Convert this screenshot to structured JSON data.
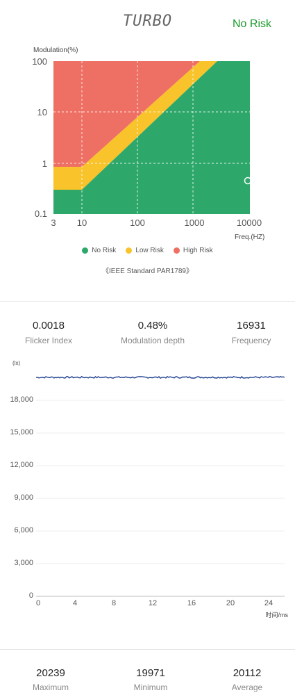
{
  "header": {
    "title": "TURBO",
    "status": "No Risk",
    "status_color": "#1a9a2a"
  },
  "chart_data": [
    {
      "type": "area",
      "title": "",
      "ylabel": "Modulation(%)",
      "xlabel": "Freq.(HZ)",
      "x_scale": "log",
      "y_scale": "log",
      "xlim": [
        3,
        10000
      ],
      "ylim": [
        0.1,
        100
      ],
      "x_ticks": [
        "3",
        "10",
        "100",
        "1000",
        "10000"
      ],
      "y_ticks": [
        "0.1",
        "1",
        "10",
        "100"
      ],
      "regions": [
        {
          "name": "No Risk",
          "color": "#2ea86a"
        },
        {
          "name": "Low Risk",
          "color": "#f8c32b"
        },
        {
          "name": "High Risk",
          "color": "#ee6f63"
        }
      ],
      "marker": {
        "frequency": 16931,
        "modulation": 0.48
      },
      "standard": "《IEEE Standard PAR1789》"
    },
    {
      "type": "line",
      "ylabel": "(lx)",
      "xlabel": "时间/ms",
      "xlim": [
        0,
        26
      ],
      "ylim": [
        0,
        21000
      ],
      "x_ticks": [
        "0",
        "4",
        "8",
        "12",
        "16",
        "20",
        "24"
      ],
      "y_ticks": [
        "0",
        "3,000",
        "6,000",
        "9,000",
        "12,000",
        "15,000",
        "18,000"
      ],
      "series": [
        {
          "color": "#1f3f8f",
          "mean": 20112,
          "min": 19971,
          "max": 20239
        }
      ]
    }
  ],
  "stats": [
    {
      "value": "0.0018",
      "label": "Flicker Index"
    },
    {
      "value": "0.48%",
      "label": "Modulation depth"
    },
    {
      "value": "16931",
      "label": "Frequency"
    }
  ],
  "summary": [
    {
      "value": "20239",
      "label": "Maximum"
    },
    {
      "value": "19971",
      "label": "Minimum"
    },
    {
      "value": "20112",
      "label": "Average"
    }
  ]
}
